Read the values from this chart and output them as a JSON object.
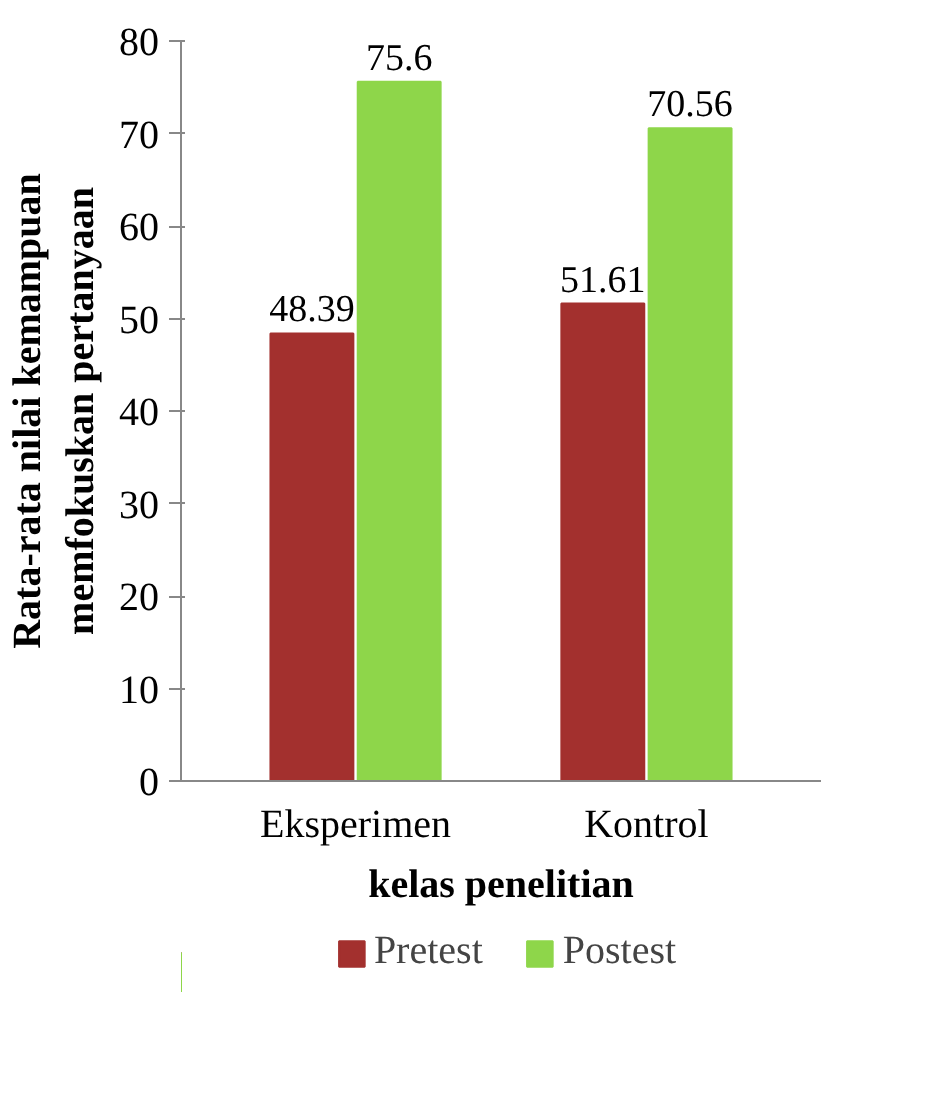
{
  "chart_data": {
    "type": "bar",
    "xlabel": "kelas penelitian",
    "ylabel": "Rata-rata nilai kemampuan\nmemfokuskan pertanyaan",
    "categories": [
      "Eksperimen",
      "Kontrol"
    ],
    "series": [
      {
        "name": "Pretest",
        "color": "#a3302e",
        "values": [
          48.39,
          51.61
        ]
      },
      {
        "name": "Postest",
        "color": "#8ed64a",
        "values": [
          75.6,
          70.56
        ]
      }
    ],
    "ylim": [
      0,
      80
    ],
    "yticks": [
      0,
      10,
      20,
      30,
      40,
      50,
      60,
      70,
      80
    ],
    "grid": false,
    "legend": "bottom",
    "data_labels": true
  }
}
